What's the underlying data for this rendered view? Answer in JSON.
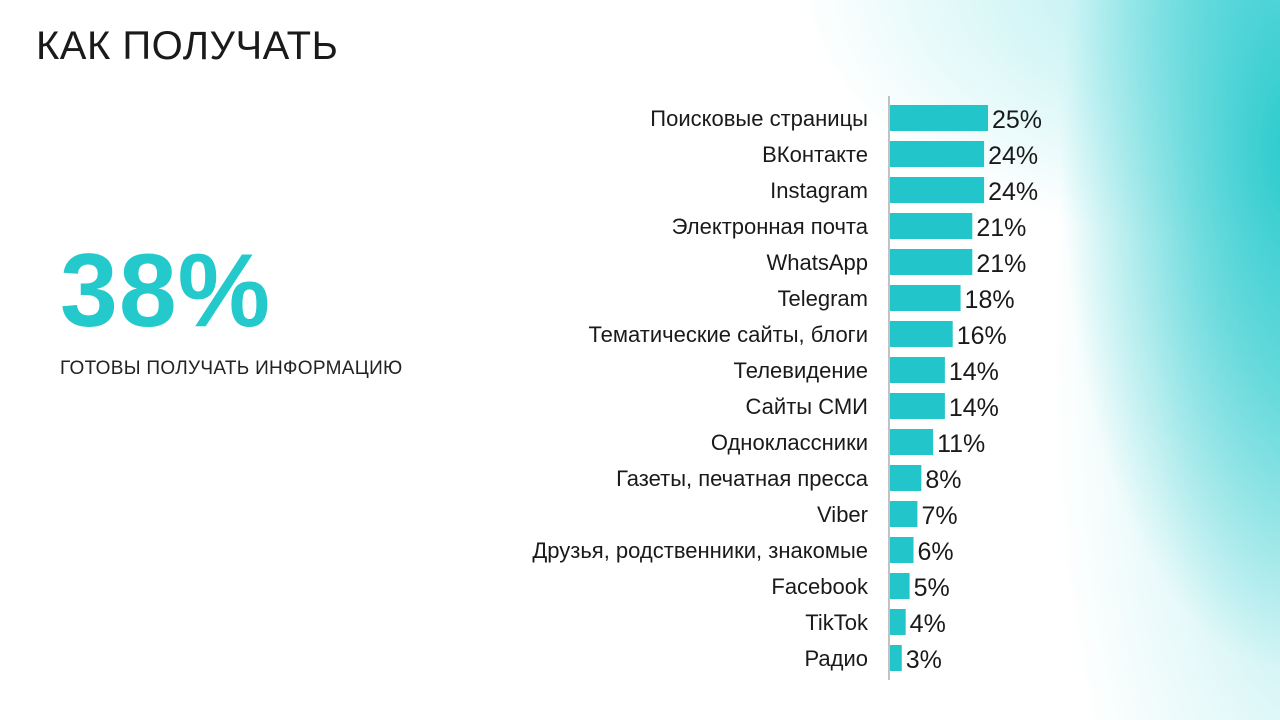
{
  "page": {
    "title": "КАК ПОЛУЧАТЬ",
    "highlight": {
      "value": "38%",
      "caption": "ГОТОВЫ ПОЛУЧАТЬ ИНФОРМАЦИЮ"
    }
  },
  "colors": {
    "accent": "#24C9CC",
    "bar": "#22C5C9",
    "text": "#1a1a1a"
  },
  "chart_data": {
    "type": "bar",
    "orientation": "horizontal",
    "categories": [
      "Поисковые страницы",
      "ВКонтакте",
      "Instagram",
      "Электронная почта",
      "WhatsApp",
      "Telegram",
      "Тематические сайты, блоги",
      "Телевидение",
      "Сайты СМИ",
      "Одноклассники",
      "Газеты, печатная пресса",
      "Viber",
      "Друзья, родственники, знакомые",
      "Facebook",
      "TikTok",
      "Радио"
    ],
    "values": [
      25,
      24,
      24,
      21,
      21,
      18,
      16,
      14,
      14,
      11,
      8,
      7,
      6,
      5,
      4,
      3
    ],
    "value_labels": [
      "25%",
      "24%",
      "24%",
      "21%",
      "21%",
      "18%",
      "16%",
      "14%",
      "14%",
      "11%",
      "8%",
      "7%",
      "6%",
      "5%",
      "4%",
      "3%"
    ],
    "unit": "%",
    "xlim": [
      0,
      25
    ],
    "grid": false,
    "legend": "none"
  }
}
